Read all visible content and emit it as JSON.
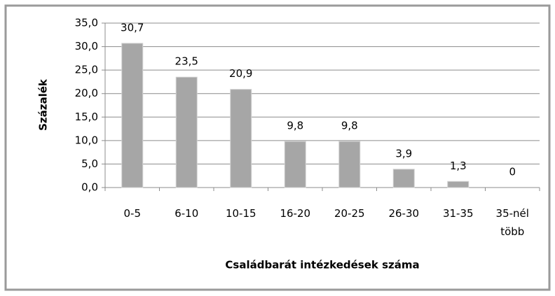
{
  "chart_data": {
    "type": "bar",
    "categories": [
      "0-5",
      "6-10",
      "10-15",
      "16-20",
      "20-25",
      "26-30",
      "31-35",
      "35-nél több"
    ],
    "values": [
      30.7,
      23.5,
      20.9,
      9.8,
      9.8,
      3.9,
      1.3,
      0
    ],
    "value_labels": [
      "30,7",
      "23,5",
      "20,9",
      "9,8",
      "9,8",
      "3,9",
      "1,3",
      "0"
    ],
    "color": "#a6a6a6",
    "ylabel": "Százalék",
    "xlabel": "Családbarát  intézkedések száma",
    "ylim": [
      0,
      35
    ],
    "yticks": [
      {
        "value": 0,
        "label": "0,0"
      },
      {
        "value": 5,
        "label": "5,0"
      },
      {
        "value": 10,
        "label": "10,0"
      },
      {
        "value": 15,
        "label": "15,0"
      },
      {
        "value": 20,
        "label": "20,0"
      },
      {
        "value": 25,
        "label": "25,0"
      },
      {
        "value": 30,
        "label": "30,0"
      },
      {
        "value": 35,
        "label": "35,0"
      }
    ],
    "grid": true
  }
}
